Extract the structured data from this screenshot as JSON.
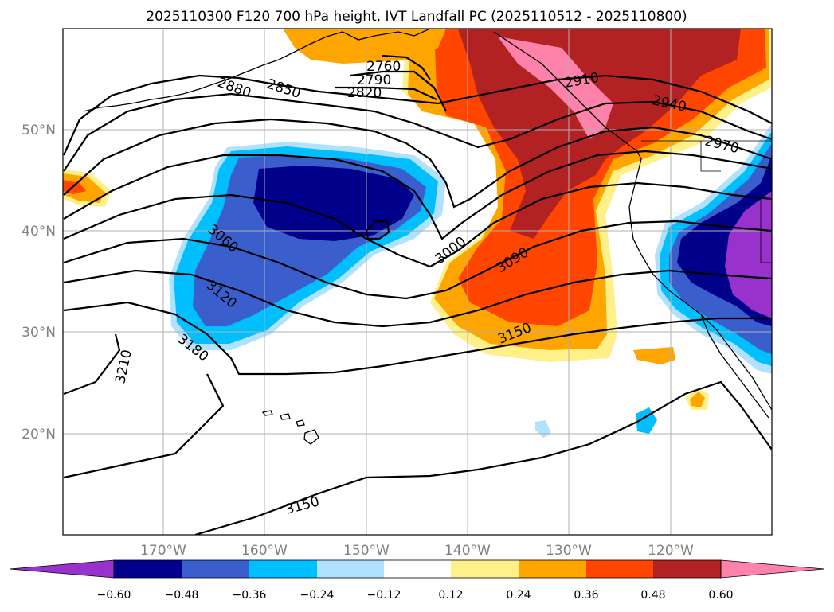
{
  "title": "2025110300 F120 700 hPa height, IVT Landfall PC (2025110512 - 2025110800)",
  "map": {
    "lat_ticks": [
      "50°N",
      "40°N",
      "30°N",
      "20°N"
    ],
    "lon_ticks": [
      "170°W",
      "160°W",
      "150°W",
      "140°W",
      "130°W",
      "120°W"
    ],
    "contour_labels": [
      "2760",
      "2790",
      "2820",
      "2850",
      "2880",
      "2910",
      "2940",
      "2970",
      "3000",
      "3060",
      "3090",
      "3120",
      "3150",
      "3180",
      "3210",
      "3150"
    ],
    "grid": true
  },
  "colorbar": {
    "ticks": [
      "−0.60",
      "−0.48",
      "−0.36",
      "−0.24",
      "−0.12",
      "0.12",
      "0.24",
      "0.36",
      "0.48",
      "0.60"
    ],
    "colors": [
      "#9932cc",
      "#00008b",
      "#3a5fcd",
      "#00bfff",
      "#b0e2ff",
      "#ffffff",
      "#fff08a",
      "#ffa500",
      "#ff4500",
      "#b22222",
      "#ff82ab"
    ],
    "extend": "both"
  },
  "colors": {
    "purple": "#9932cc",
    "navy": "#00008b",
    "royal": "#3a5fcd",
    "sky": "#00bfff",
    "pale_blue": "#b0e2ff",
    "yellow": "#fff08a",
    "orange": "#ffa500",
    "red_orange": "#ff4500",
    "firebrick": "#b22222",
    "pink": "#ff82ab"
  }
}
